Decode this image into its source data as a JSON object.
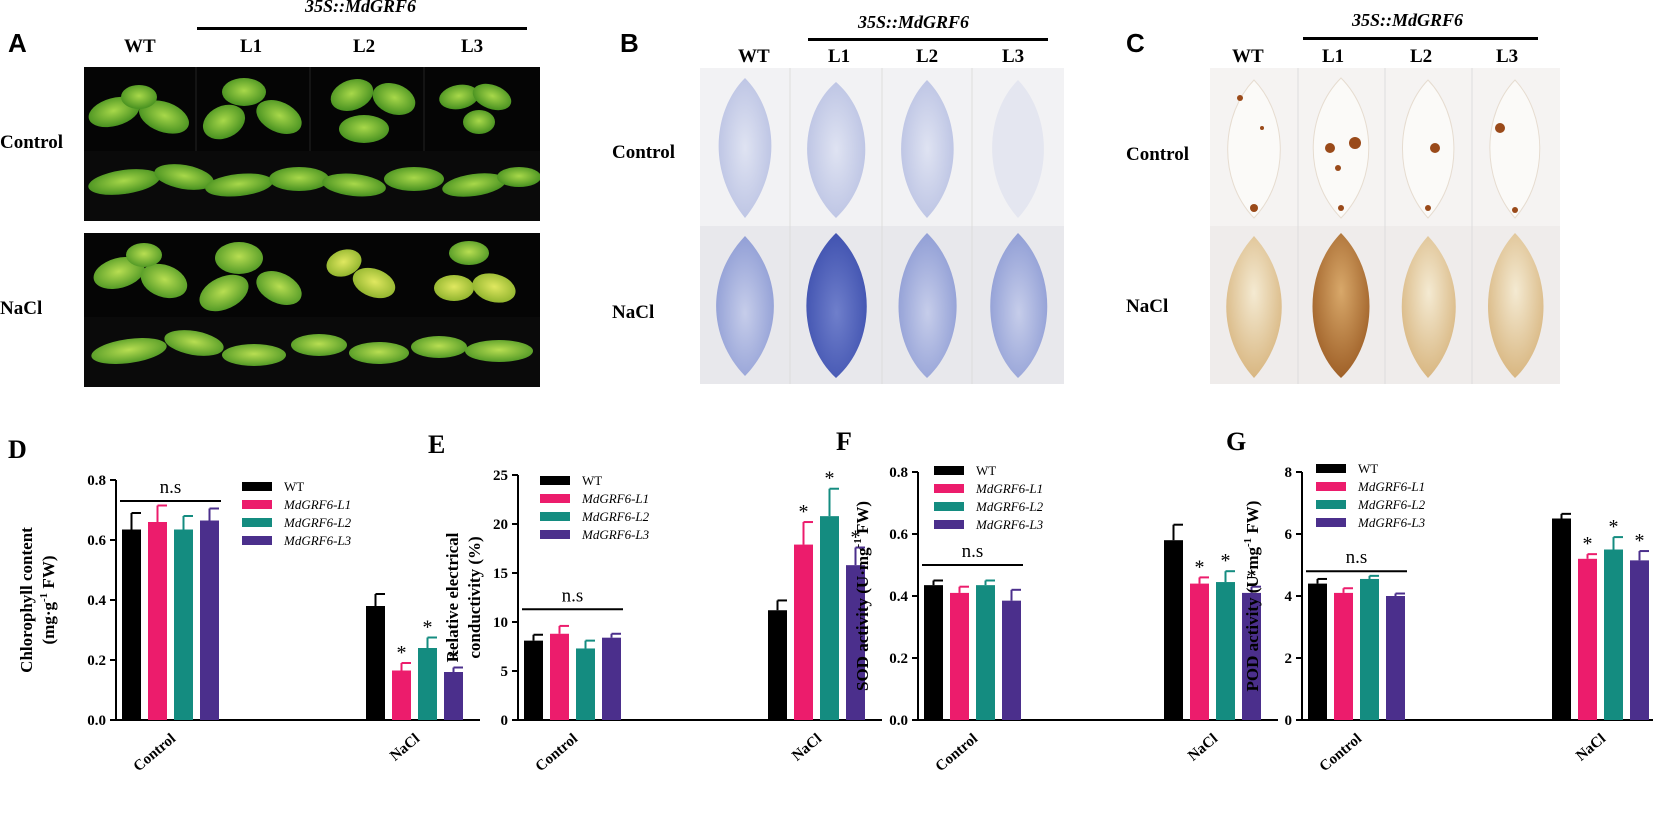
{
  "panels": {
    "A": {
      "letter": "A",
      "construct": "35S::MdGRF6",
      "columns": [
        "WT",
        "L1",
        "L2",
        "L3"
      ],
      "rows": [
        "Control",
        "NaCl"
      ]
    },
    "B": {
      "letter": "B",
      "construct": "35S::MdGRF6",
      "columns": [
        "WT",
        "L1",
        "L2",
        "L3"
      ],
      "rows": [
        "Control",
        "NaCl"
      ]
    },
    "C": {
      "letter": "C",
      "construct": "35S::MdGRF6",
      "columns": [
        "WT",
        "L1",
        "L2",
        "L3"
      ],
      "rows": [
        "Control",
        "NaCl"
      ]
    }
  },
  "colors": {
    "WT": "#000000",
    "L1": "#ec1c6c",
    "L2": "#148c80",
    "L3": "#4b2f8c"
  },
  "chart_data": [
    {
      "letter": "D",
      "type": "bar",
      "ylabel_line1": "Chlorophyll content",
      "ylabel_line2": "(mg·g",
      "ylabel_sup": "-1",
      "ylabel_line2_end": " FW)",
      "categories": [
        "Control",
        "NaCl"
      ],
      "ylim": [
        0,
        0.8
      ],
      "yticks": [
        "0.0",
        "0.2",
        "0.4",
        "0.6",
        "0.8"
      ],
      "ytick_values": [
        0,
        0.2,
        0.4,
        0.6,
        0.8
      ],
      "legend_placement": "top-right",
      "series": [
        {
          "name": "WT",
          "values": [
            0.635,
            0.38
          ],
          "errors": [
            0.055,
            0.04
          ]
        },
        {
          "name": "MdGRF6-L1",
          "values": [
            0.66,
            0.165
          ],
          "errors": [
            0.055,
            0.025
          ]
        },
        {
          "name": "MdGRF6-L2",
          "values": [
            0.635,
            0.24
          ],
          "errors": [
            0.045,
            0.035
          ]
        },
        {
          "name": "MdGRF6-L3",
          "values": [
            0.665,
            0.16
          ],
          "errors": [
            0.04,
            0.015
          ]
        }
      ],
      "significance": {
        "Control": "n.s",
        "NaCl": [
          "",
          "*",
          "*",
          "*"
        ]
      },
      "ns_y": 0.73
    },
    {
      "letter": "E",
      "type": "bar",
      "ylabel_line1": "Relative electrical",
      "ylabel_line2": "conductivity (%)",
      "ylabel_sup": "",
      "ylabel_line2_end": "",
      "categories": [
        "Control",
        "NaCl"
      ],
      "ylim": [
        0,
        25
      ],
      "yticks": [
        "0",
        "5",
        "10",
        "15",
        "20",
        "25"
      ],
      "ytick_values": [
        0,
        5,
        10,
        15,
        20,
        25
      ],
      "legend_placement": "top-left",
      "series": [
        {
          "name": "WT",
          "values": [
            8.1,
            11.2
          ],
          "errors": [
            0.6,
            1.0
          ]
        },
        {
          "name": "MdGRF6-L1",
          "values": [
            8.8,
            17.9
          ],
          "errors": [
            0.8,
            2.3
          ]
        },
        {
          "name": "MdGRF6-L2",
          "values": [
            7.3,
            20.8
          ],
          "errors": [
            0.8,
            2.8
          ]
        },
        {
          "name": "MdGRF6-L3",
          "values": [
            8.4,
            15.8
          ],
          "errors": [
            0.4,
            1.8
          ]
        }
      ],
      "significance": {
        "Control": "n.s",
        "NaCl": [
          "",
          "*",
          "*",
          "*"
        ]
      },
      "ns_y": 11.3
    },
    {
      "letter": "F",
      "type": "bar",
      "ylabel_line1": "SOD activity (U·mg",
      "ylabel_line2": "",
      "ylabel_sup": "-1",
      "ylabel_line2_end": " FW)",
      "categories": [
        "Control",
        "NaCl"
      ],
      "ylim": [
        0,
        0.8
      ],
      "yticks": [
        "0.0",
        "0.2",
        "0.4",
        "0.6",
        "0.8"
      ],
      "ytick_values": [
        0,
        0.2,
        0.4,
        0.6,
        0.8
      ],
      "legend_placement": "top-left",
      "series": [
        {
          "name": "WT",
          "values": [
            0.435,
            0.58
          ],
          "errors": [
            0.015,
            0.05
          ]
        },
        {
          "name": "MdGRF6-L1",
          "values": [
            0.41,
            0.44
          ],
          "errors": [
            0.02,
            0.02
          ]
        },
        {
          "name": "MdGRF6-L2",
          "values": [
            0.435,
            0.445
          ],
          "errors": [
            0.015,
            0.035
          ]
        },
        {
          "name": "MdGRF6-L3",
          "values": [
            0.385,
            0.41
          ],
          "errors": [
            0.035,
            0.02
          ]
        }
      ],
      "significance": {
        "Control": "n.s",
        "NaCl": [
          "",
          "*",
          "*",
          "*"
        ]
      },
      "ns_y": 0.5
    },
    {
      "letter": "G",
      "type": "bar",
      "ylabel_line1": "POD activity (U·mg",
      "ylabel_line2": "",
      "ylabel_sup": "-1",
      "ylabel_line2_end": " FW)",
      "categories": [
        "Control",
        "NaCl"
      ],
      "ylim": [
        0,
        8
      ],
      "yticks": [
        "0",
        "2",
        "4",
        "6",
        "8"
      ],
      "ytick_values": [
        0,
        2,
        4,
        6,
        8
      ],
      "legend_placement": "top-left",
      "series": [
        {
          "name": "WT",
          "values": [
            4.4,
            6.5
          ],
          "errors": [
            0.15,
            0.15
          ]
        },
        {
          "name": "MdGRF6-L1",
          "values": [
            4.1,
            5.2
          ],
          "errors": [
            0.15,
            0.15
          ]
        },
        {
          "name": "MdGRF6-L2",
          "values": [
            4.55,
            5.5
          ],
          "errors": [
            0.1,
            0.4
          ]
        },
        {
          "name": "MdGRF6-L3",
          "values": [
            4.0,
            5.15
          ],
          "errors": [
            0.08,
            0.3
          ]
        }
      ],
      "significance": {
        "Control": "n.s",
        "NaCl": [
          "",
          "*",
          "*",
          "*"
        ]
      },
      "ns_y": 4.8
    }
  ]
}
